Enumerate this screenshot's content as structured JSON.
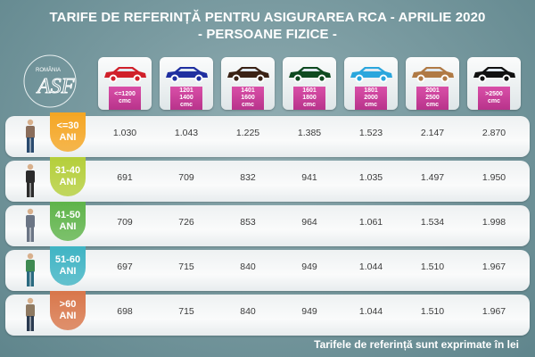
{
  "title": {
    "line1": "TARIFE DE REFERINȚĂ PENTRU ASIGURAREA RCA - APRILIE 2020",
    "line2": "- PERSOANE FIZICE -"
  },
  "logo": {
    "country": "ROMÂNIA",
    "monogram": "ASF",
    "authority": "AUTORITATEA DE SUPRAVEGHERE FINANCIARĂ"
  },
  "footer_note": "Tarifele de referință sunt exprimate în lei",
  "colors": {
    "engine_label": "#c13e95",
    "badge_30": "#f5a623",
    "badge_40": "#b5cf3a",
    "badge_50": "#5fb44a",
    "badge_60": "#3fb4c4",
    "badge_60plus": "#d9774b"
  },
  "chart_data": {
    "type": "table",
    "title": "TARIFE DE REFERINȚĂ PENTRU ASIGURAREA RCA - APRILIE 2020 - PERSOANE FIZICE -",
    "unit": "lei",
    "columns": [
      {
        "l1": "<=1200",
        "l2": "",
        "l3": "cmc",
        "car_color": "#d0202a"
      },
      {
        "l1": "1201",
        "l2": "1400",
        "l3": "cmc",
        "car_color": "#1f2fa0"
      },
      {
        "l1": "1401",
        "l2": "1600",
        "l3": "cmc",
        "car_color": "#3b2215"
      },
      {
        "l1": "1601",
        "l2": "1800",
        "l3": "cmc",
        "car_color": "#0f4a20"
      },
      {
        "l1": "1801",
        "l2": "2000",
        "l3": "cmc",
        "car_color": "#2aa6dd"
      },
      {
        "l1": "2001",
        "l2": "2500",
        "l3": "cmc",
        "car_color": "#b07a45"
      },
      {
        "l1": ">2500",
        "l2": "",
        "l3": "cmc",
        "car_color": "#111111"
      }
    ],
    "rows": [
      {
        "age": "<=30",
        "unit": "ANI",
        "values": [
          "1.030",
          "1.043",
          "1.225",
          "1.385",
          "1.523",
          "2.147",
          "2.870"
        ]
      },
      {
        "age": "31-40",
        "unit": "ANI",
        "values": [
          "691",
          "709",
          "832",
          "941",
          "1.035",
          "1.497",
          "1.950"
        ]
      },
      {
        "age": "41-50",
        "unit": "ANI",
        "values": [
          "709",
          "726",
          "853",
          "964",
          "1.061",
          "1.534",
          "1.998"
        ]
      },
      {
        "age": "51-60",
        "unit": "ANI",
        "values": [
          "697",
          "715",
          "840",
          "949",
          "1.044",
          "1.510",
          "1.967"
        ]
      },
      {
        "age": ">60",
        "unit": "ANI",
        "values": [
          "698",
          "715",
          "840",
          "949",
          "1.044",
          "1.510",
          "1.967"
        ]
      }
    ]
  }
}
